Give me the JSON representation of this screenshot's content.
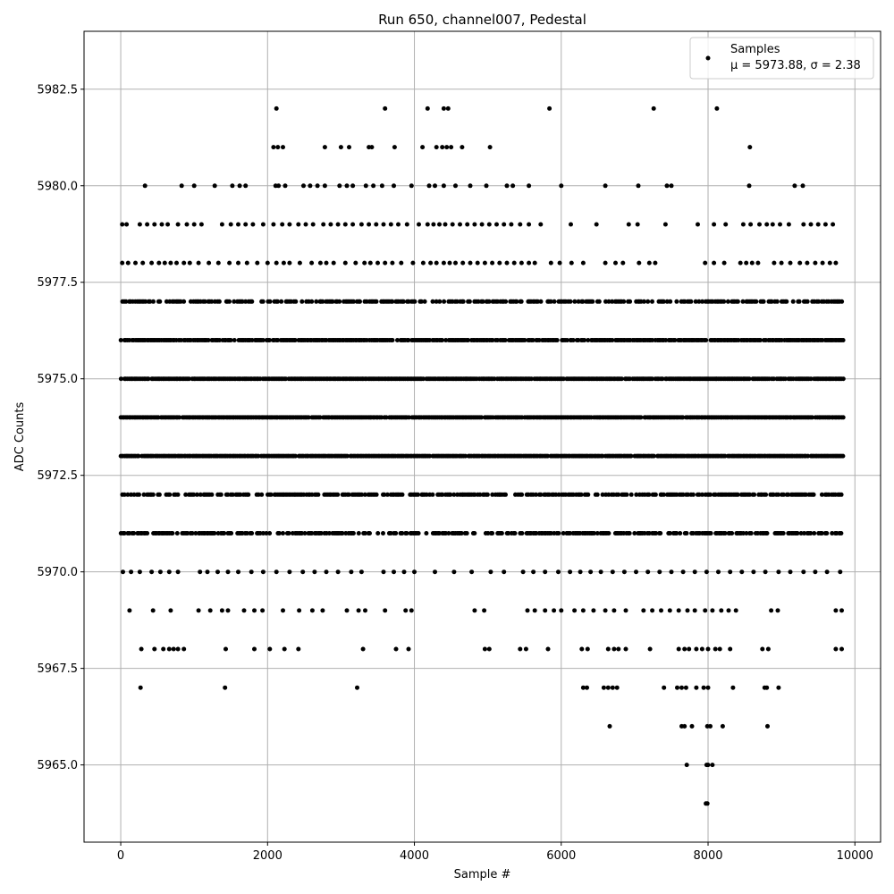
{
  "chart_data": {
    "type": "scatter",
    "title": "Run 650, channel007, Pedestal",
    "xlabel": "Sample #",
    "ylabel": "ADC Counts",
    "xlim": [
      -500,
      10350
    ],
    "ylim": [
      5963,
      5984
    ],
    "xticks": [
      0,
      2000,
      4000,
      6000,
      8000,
      10000
    ],
    "xtick_labels": [
      "0",
      "2000",
      "4000",
      "6000",
      "8000",
      "10000"
    ],
    "yticks": [
      5965.0,
      5967.5,
      5970.0,
      5972.5,
      5975.0,
      5977.5,
      5980.0,
      5982.5
    ],
    "ytick_labels": [
      "5965.0",
      "5967.5",
      "5970.0",
      "5972.5",
      "5975.0",
      "5977.5",
      "5980.0",
      "5982.5"
    ],
    "grid": true,
    "legend": {
      "placement": "top-right",
      "series_name": "Samples",
      "stats_text": "μ = 5973.88, σ = 2.38"
    },
    "series": [
      {
        "name": "Samples",
        "color": "#000000",
        "n_samples": 9850,
        "levels": [
          {
            "y": 5964,
            "x": [
              7970,
              7990
            ]
          },
          {
            "y": 5965,
            "x": [
              7710,
              7980,
              8000,
              8060
            ]
          },
          {
            "y": 5966,
            "x": [
              6660,
              7640,
              7680,
              7780,
              7990,
              8030,
              8200,
              8810
            ]
          },
          {
            "y": 5967,
            "x": [
              270,
              1420,
              3220,
              6300,
              6350,
              6580,
              6640,
              6700,
              6760,
              7400,
              7580,
              7640,
              7700,
              7840,
              7940,
              8000,
              8340,
              8770,
              8800,
              8960
            ]
          },
          {
            "y": 5968,
            "x": [
              280,
              460,
              580,
              660,
              720,
              780,
              860,
              1430,
              1820,
              2030,
              2230,
              2420,
              3300,
              3750,
              3920,
              4960,
              5020,
              5440,
              5520,
              5820,
              6280,
              6360,
              6640,
              6720,
              6780,
              6880,
              7210,
              7600,
              7680,
              7740,
              7840,
              7920,
              8000,
              8100,
              8160,
              8300,
              8740,
              8820,
              9740,
              9820
            ]
          },
          {
            "y": 5969,
            "x": [
              120,
              440,
              680,
              1060,
              1220,
              1380,
              1460,
              1680,
              1820,
              1930,
              2210,
              2430,
              2610,
              2750,
              3080,
              3240,
              3330,
              3600,
              3880,
              3960,
              4820,
              4950,
              5540,
              5640,
              5780,
              5900,
              6000,
              6180,
              6300,
              6440,
              6600,
              6720,
              6880,
              7120,
              7240,
              7360,
              7480,
              7600,
              7720,
              7820,
              7960,
              8060,
              8180,
              8280,
              8380,
              8860,
              8950,
              9740,
              9820
            ]
          },
          {
            "y": 5970,
            "x": [
              30,
              140,
              260,
              420,
              540,
              660,
              780,
              1080,
              1180,
              1320,
              1460,
              1600,
              1780,
              1940,
              2120,
              2300,
              2480,
              2640,
              2800,
              2960,
              3140,
              3280,
              3580,
              3720,
              3860,
              4000,
              4280,
              4540,
              4780,
              5040,
              5220,
              5480,
              5620,
              5780,
              5960,
              6120,
              6260,
              6400,
              6540,
              6700,
              6860,
              7020,
              7180,
              7340,
              7500,
              7660,
              7820,
              7980,
              8140,
              8300,
              8460,
              8620,
              8780,
              8960,
              9120,
              9300,
              9460,
              9620,
              9800
            ]
          }
        ],
        "dense_levels": [
          {
            "y": 5971,
            "gap_rate": 0.35
          },
          {
            "y": 5972,
            "gap_rate": 0.3
          },
          {
            "y": 5973,
            "gap_rate": 0.04
          },
          {
            "y": 5974,
            "gap_rate": 0.04
          },
          {
            "y": 5975,
            "gap_rate": 0.04
          },
          {
            "y": 5976,
            "gap_rate": 0.12
          },
          {
            "y": 5977,
            "gap_rate": 0.35
          }
        ],
        "upper_levels": [
          {
            "y": 5978,
            "x": [
              20,
              100,
              200,
              300,
              420,
              520,
              600,
              680,
              760,
              860,
              940,
              1060,
              1200,
              1330,
              1480,
              1600,
              1720,
              1860,
              2000,
              2120,
              2220,
              2300,
              2440,
              2600,
              2720,
              2800,
              2900,
              3060,
              3200,
              3320,
              3400,
              3500,
              3600,
              3700,
              3820,
              3980,
              4120,
              4220,
              4300,
              4400,
              4480,
              4560,
              4660,
              4760,
              4860,
              4960,
              5060,
              5160,
              5260,
              5360,
              5460,
              5560,
              5640,
              5860,
              5980,
              6140,
              6300,
              6600,
              6740,
              6840,
              7060,
              7200,
              7280,
              7960,
              8080,
              8220,
              8440,
              8520,
              8600,
              8680,
              8900,
              9000,
              9120,
              9250,
              9350,
              9460,
              9560,
              9660,
              9740
            ]
          },
          {
            "y": 5979,
            "x": [
              20,
              80,
              260,
              360,
              460,
              560,
              640,
              780,
              900,
              1000,
              1100,
              1380,
              1500,
              1600,
              1700,
              1800,
              1940,
              2080,
              2200,
              2300,
              2420,
              2520,
              2620,
              2760,
              2860,
              2960,
              3060,
              3160,
              3280,
              3380,
              3480,
              3580,
              3680,
              3780,
              3900,
              4060,
              4180,
              4260,
              4340,
              4420,
              4520,
              4620,
              4720,
              4820,
              4920,
              5020,
              5120,
              5220,
              5320,
              5440,
              5560,
              5720,
              6130,
              6480,
              6920,
              7040,
              7420,
              7860,
              8080,
              8240,
              8480,
              8580,
              8700,
              8800,
              8880,
              8980,
              9100,
              9300,
              9400,
              9500,
              9600,
              9700
            ]
          },
          {
            "y": 5980,
            "x": [
              330,
              830,
              1000,
              1280,
              1520,
              1620,
              1700,
              2110,
              2150,
              2240,
              2490,
              2580,
              2680,
              2780,
              2980,
              3080,
              3160,
              3340,
              3440,
              3560,
              3720,
              3960,
              4200,
              4280,
              4400,
              4560,
              4760,
              4980,
              5260,
              5340,
              5560,
              6000,
              6600,
              7050,
              7440,
              7500,
              8560,
              9180,
              9290
            ]
          },
          {
            "y": 5981,
            "x": [
              2080,
              2140,
              2210,
              2780,
              3000,
              3110,
              3380,
              3420,
              3730,
              4110,
              4300,
              4380,
              4440,
              4500,
              4650,
              5030,
              8570
            ]
          },
          {
            "y": 5982,
            "x": [
              2120,
              3600,
              4180,
              4400,
              4460,
              5840,
              7260,
              8120
            ]
          }
        ]
      }
    ]
  }
}
